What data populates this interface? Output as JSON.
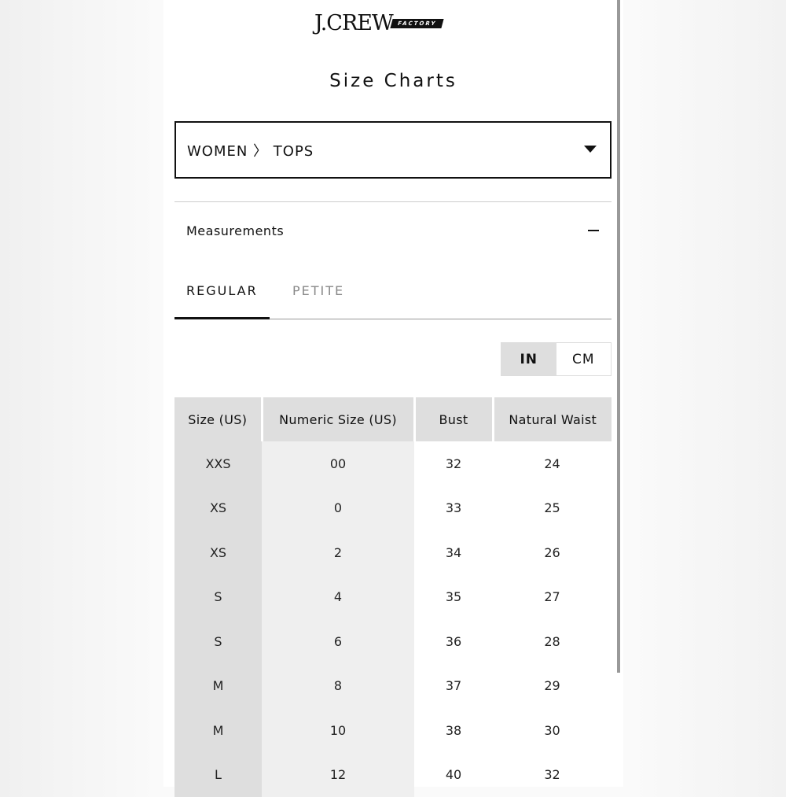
{
  "logo": {
    "brand": "J.CREW",
    "sub": "FACTORY"
  },
  "title": "Size Charts",
  "category_select": {
    "value": "WOMEN 〉 TOPS"
  },
  "section": {
    "label": "Measurements",
    "icon": "minus-icon"
  },
  "tabs": [
    {
      "label": "REGULAR",
      "active": true
    },
    {
      "label": "PETITE",
      "active": false
    }
  ],
  "units": {
    "in": "IN",
    "cm": "CM",
    "selected": "IN"
  },
  "table": {
    "headers": [
      "Size (US)",
      "Numeric Size (US)",
      "Bust",
      "Natural Waist"
    ],
    "rows": [
      [
        "XXS",
        "00",
        "32",
        "24"
      ],
      [
        "XS",
        "0",
        "33",
        "25"
      ],
      [
        "XS",
        "2",
        "34",
        "26"
      ],
      [
        "S",
        "4",
        "35",
        "27"
      ],
      [
        "S",
        "6",
        "36",
        "28"
      ],
      [
        "M",
        "8",
        "37",
        "29"
      ],
      [
        "M",
        "10",
        "38",
        "30"
      ],
      [
        "L",
        "12",
        "40",
        "32"
      ]
    ]
  }
}
